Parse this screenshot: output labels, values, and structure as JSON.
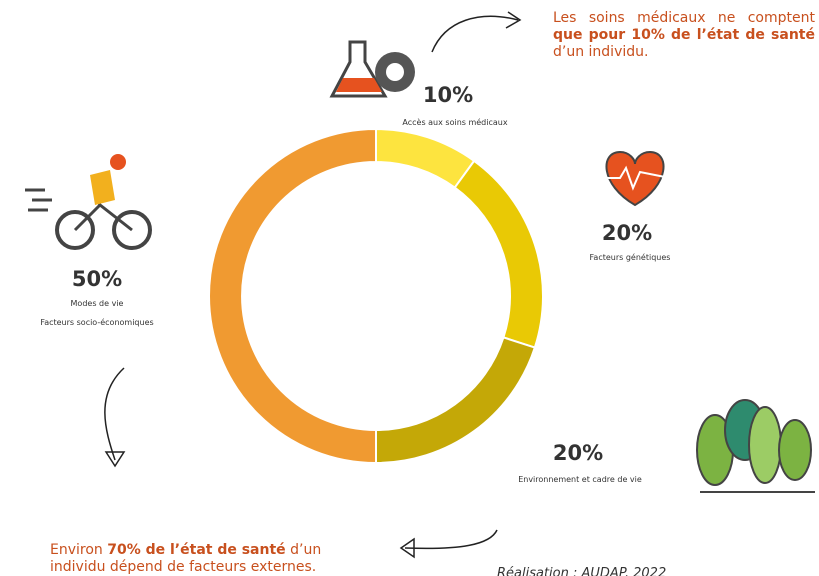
{
  "chart_data": {
    "type": "donut",
    "categories": [
      "Accès aux soins médicaux",
      "Facteurs génétiques",
      "Environnement et cadre de vie",
      "Modes de vie"
    ],
    "category_notes": [
      null,
      null,
      null,
      "Facteurs socio-économiques"
    ],
    "values": [
      10,
      20,
      20,
      50
    ],
    "value_labels": [
      "10%",
      "20%",
      "20%",
      "50%"
    ],
    "colors": [
      "#fde43f",
      "#e9c905",
      "#c4a807",
      "#f09a31"
    ],
    "note_top": [
      {
        "text": "Les soins médicaux ne comptent ",
        "bold": false
      },
      {
        "text": "que pour 10% de l’état de santé",
        "bold": true
      },
      {
        "text": " d’un individu.",
        "bold": false
      }
    ],
    "note_bottom": [
      {
        "text": "Environ ",
        "bold": false
      },
      {
        "text": "70% de l’état de santé",
        "bold": true
      },
      {
        "text": " d’un individu dépend de facteurs externes.",
        "bold": false
      }
    ],
    "source": "Réalisation : AUDAP, 2022"
  }
}
